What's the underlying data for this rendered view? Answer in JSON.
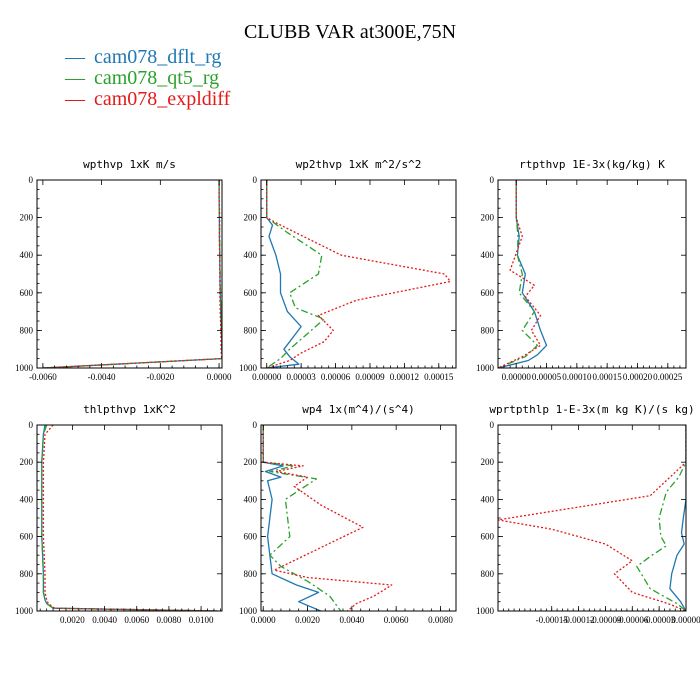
{
  "figure": {
    "title": "CLUBB VAR at300E,75N",
    "legend": [
      {
        "label": "cam078_dflt_rg",
        "color": "#1f77b4",
        "marker": "—"
      },
      {
        "label": "cam078_qt5_rg",
        "color": "#2ca02c",
        "marker": "—"
      },
      {
        "label": "cam078_expldiff",
        "color": "#e31a1c",
        "marker": "—"
      }
    ]
  },
  "chart_data": [
    {
      "type": "line",
      "title": "wpthvp  1xK m/s",
      "xlim": [
        -0.0062,
        0.0001
      ],
      "ylim": [
        0,
        1000
      ],
      "y_inverted": true,
      "xticks": [
        -0.006,
        -0.004,
        -0.002,
        0.0
      ],
      "xtick_labels": [
        "-0.0060",
        "-0.0040",
        "-0.0020",
        "0.0000"
      ],
      "yticks": [
        0,
        200,
        400,
        600,
        800,
        1000
      ],
      "ytick_labels": [
        "0",
        "200",
        "400",
        "600",
        "800",
        "1000"
      ],
      "series": [
        {
          "name": "cam078_dflt_rg",
          "x": [
            0.0,
            0.0,
            1e-05,
            1e-05,
            2e-05,
            3e-05,
            4e-05,
            6e-05,
            8e-05,
            0.0001,
            0.00012,
            -0.006
          ],
          "y": [
            0,
            100,
            200,
            300,
            400,
            500,
            600,
            700,
            800,
            900,
            950,
            1000
          ]
        },
        {
          "name": "cam078_qt5_rg",
          "x": [
            0.0,
            0.0,
            1e-05,
            2e-05,
            3e-05,
            4e-05,
            5e-05,
            6e-05,
            8e-05,
            9e-05,
            0.00011,
            -0.006
          ],
          "y": [
            0,
            100,
            200,
            300,
            400,
            500,
            600,
            700,
            800,
            900,
            950,
            1000
          ]
        },
        {
          "name": "cam078_expldiff",
          "x": [
            0.0,
            0.0,
            2e-05,
            1e-05,
            2e-05,
            3e-05,
            3e-05,
            4e-05,
            6e-05,
            7e-05,
            9e-05,
            -0.006
          ],
          "y": [
            0,
            100,
            200,
            300,
            400,
            500,
            600,
            700,
            800,
            900,
            950,
            1000
          ]
        }
      ]
    },
    {
      "type": "line",
      "title": "wp2thvp  1xK m^2/s^2",
      "xlim": [
        -5e-06,
        0.000165
      ],
      "ylim": [
        0,
        1000
      ],
      "y_inverted": true,
      "xticks": [
        0.0,
        3e-05,
        6e-05,
        9e-05,
        0.00012,
        0.00015
      ],
      "xtick_labels": [
        "0.00000",
        "0.00003",
        "0.00006",
        "0.00009",
        "0.00012",
        "0.00015"
      ],
      "yticks": [
        0,
        200,
        400,
        600,
        800,
        1000
      ],
      "ytick_labels": [
        "0",
        "200",
        "400",
        "600",
        "800",
        "1000"
      ],
      "series": [
        {
          "name": "cam078_dflt_rg",
          "x": [
            0.0,
            0.0,
            5e-06,
            2e-06,
            8e-06,
            1.2e-05,
            1.2e-05,
            1.8e-05,
            3e-05,
            2e-05,
            1.5e-05,
            2e-05,
            2.8e-05,
            0.0
          ],
          "y": [
            0,
            200,
            240,
            300,
            400,
            500,
            600,
            700,
            780,
            860,
            900,
            940,
            980,
            1000
          ]
        },
        {
          "name": "cam078_qt5_rg",
          "x": [
            0.0,
            0.0,
            1.8e-05,
            4.8e-05,
            4.5e-05,
            2e-05,
            2.5e-05,
            5e-05,
            3.5e-05,
            2e-05,
            1.2e-05,
            0.0
          ],
          "y": [
            0,
            200,
            280,
            400,
            500,
            600,
            680,
            740,
            820,
            900,
            950,
            1000
          ]
        },
        {
          "name": "cam078_expldiff",
          "x": [
            0.0,
            0.0,
            1.2e-05,
            6.5e-05,
            0.000155,
            0.00016,
            7.8e-05,
            4.5e-05,
            5.8e-05,
            5e-05,
            3e-05,
            2e-05,
            0.0
          ],
          "y": [
            0,
            200,
            240,
            400,
            500,
            540,
            640,
            720,
            800,
            860,
            920,
            960,
            1000
          ]
        }
      ]
    },
    {
      "type": "line",
      "title": "rtpthvp  1E-3x(kg/kg) K",
      "xlim": [
        -3e-05,
        0.00028
      ],
      "ylim": [
        0,
        1000
      ],
      "y_inverted": true,
      "xticks": [
        0.0,
        5e-05,
        0.0001,
        0.00015,
        0.0002,
        0.00025
      ],
      "xtick_labels": [
        "0.00000",
        "0.00005",
        "0.00010",
        "0.00015",
        "0.00020",
        "0.00025"
      ],
      "yticks": [
        0,
        200,
        400,
        600,
        800,
        1000
      ],
      "ytick_labels": [
        "0",
        "200",
        "400",
        "600",
        "800",
        "1000"
      ],
      "series": [
        {
          "name": "cam078_dflt_rg",
          "x": [
            0.0,
            0.0,
            5e-06,
            2e-06,
            1.5e-05,
            1e-05,
            3e-05,
            4e-05,
            5e-05,
            3.5e-05,
            2e-05,
            -3e-05
          ],
          "y": [
            0,
            200,
            300,
            400,
            500,
            600,
            700,
            800,
            880,
            930,
            960,
            1000
          ]
        },
        {
          "name": "cam078_qt5_rg",
          "x": [
            0.0,
            0.0,
            3e-06,
            2e-06,
            1e-05,
            5e-06,
            3e-05,
            1e-05,
            3.5e-05,
            1.5e-05,
            -3e-05
          ],
          "y": [
            0,
            200,
            300,
            400,
            500,
            600,
            700,
            800,
            880,
            940,
            1000
          ]
        },
        {
          "name": "cam078_expldiff",
          "x": [
            0.0,
            0.0,
            1e-05,
            -1e-05,
            3e-05,
            1.5e-05,
            4e-05,
            2.5e-05,
            4e-05,
            1e-05,
            -3e-05
          ],
          "y": [
            0,
            200,
            300,
            480,
            560,
            620,
            720,
            800,
            880,
            940,
            1000
          ]
        }
      ]
    },
    {
      "type": "line",
      "title": "thlpthvp  1xK^2",
      "xlim": [
        -0.0002,
        0.0113
      ],
      "ylim": [
        0,
        1000
      ],
      "y_inverted": true,
      "xticks": [
        0.002,
        0.004,
        0.006,
        0.008,
        0.01
      ],
      "xtick_labels": [
        "0.0020",
        "0.0040",
        "0.0060",
        "0.0080",
        "0.0100"
      ],
      "yticks": [
        0,
        200,
        400,
        600,
        800,
        1000
      ],
      "ytick_labels": [
        "0",
        "200",
        "400",
        "600",
        "800",
        "1000"
      ],
      "series": [
        {
          "name": "cam078_dflt_rg",
          "x": [
            0.0003,
            0.0002,
            0.0001,
            0.0001,
            0.0001,
            0.0002,
            0.0002,
            0.0003,
            0.0004,
            0.0008,
            0.011
          ],
          "y": [
            0,
            50,
            200,
            400,
            600,
            800,
            900,
            940,
            960,
            985,
            1000
          ]
        },
        {
          "name": "cam078_qt5_rg",
          "x": [
            0.0004,
            0.0002,
            0.0001,
            0.0001,
            0.0001,
            0.0002,
            0.0002,
            0.0003,
            0.0004,
            0.0008,
            0.011
          ],
          "y": [
            0,
            50,
            200,
            400,
            600,
            800,
            900,
            940,
            960,
            985,
            1000
          ]
        },
        {
          "name": "cam078_expldiff",
          "x": [
            0.0008,
            0.0003,
            0.0002,
            0.0002,
            0.0002,
            0.0003,
            0.0003,
            0.0004,
            0.0005,
            0.0009,
            0.011
          ],
          "y": [
            0,
            50,
            200,
            400,
            600,
            800,
            900,
            940,
            960,
            985,
            1000
          ]
        }
      ]
    },
    {
      "type": "line",
      "title": "wp4  1x(m^4)/(s^4)",
      "xlim": [
        -0.0001,
        0.0087
      ],
      "ylim": [
        0,
        1000
      ],
      "y_inverted": true,
      "xticks": [
        0.0,
        0.002,
        0.004,
        0.006,
        0.008
      ],
      "xtick_labels": [
        "0.0000",
        "0.0020",
        "0.0040",
        "0.0060",
        "0.0080"
      ],
      "yticks": [
        0,
        200,
        400,
        600,
        800,
        1000
      ],
      "ytick_labels": [
        "0",
        "200",
        "400",
        "600",
        "800",
        "1000"
      ],
      "series": [
        {
          "name": "cam078_dflt_rg",
          "x": [
            0.0,
            0.0,
            0.0009,
            0.0001,
            0.0008,
            0.0002,
            0.0004,
            0.0002,
            0.0004,
            0.0015,
            0.0025,
            0.0016,
            0.0026
          ],
          "y": [
            0,
            200,
            220,
            250,
            280,
            300,
            400,
            600,
            800,
            860,
            900,
            950,
            1000
          ]
        },
        {
          "name": "cam078_qt5_rg",
          "x": [
            0.0,
            0.0,
            0.0014,
            0.0003,
            0.0024,
            0.001,
            0.0012,
            0.0003,
            0.0008,
            0.002,
            0.003,
            0.0035
          ],
          "y": [
            0,
            200,
            220,
            250,
            290,
            400,
            600,
            700,
            760,
            840,
            920,
            1000
          ]
        },
        {
          "name": "cam078_expldiff",
          "x": [
            0.0,
            0.0,
            0.0018,
            0.0006,
            0.002,
            0.0014,
            0.0026,
            0.0045,
            0.0005,
            0.002,
            0.0058,
            0.005,
            0.0042,
            0.0038
          ],
          "y": [
            0,
            200,
            220,
            250,
            280,
            330,
            430,
            550,
            780,
            820,
            860,
            920,
            960,
            1000
          ]
        }
      ]
    },
    {
      "type": "line",
      "title": "wprtpthlp  1-E-3x(m kg K)/(s kg)",
      "xlim": [
        -0.00021,
        0.0
      ],
      "ylim": [
        0,
        1000
      ],
      "y_inverted": true,
      "xticks": [
        -0.00015,
        -0.00012,
        -9e-05,
        -6e-05,
        -3e-05,
        0.0
      ],
      "xtick_labels": [
        "-0.00015",
        "-0.00012",
        "-0.00009",
        "-0.00006",
        "-0.00003",
        "0.00000"
      ],
      "yticks": [
        0,
        200,
        400,
        600,
        800,
        1000
      ],
      "ytick_labels": [
        "0",
        "200",
        "400",
        "600",
        "800",
        "1000"
      ],
      "series": [
        {
          "name": "cam078_dflt_rg",
          "x": [
            0.0,
            0.0,
            0.0,
            -3e-06,
            -5e-06,
            -2e-06,
            -1e-05,
            -1.6e-05,
            -1.8e-05,
            -6e-06,
            0.0
          ],
          "y": [
            0,
            200,
            400,
            500,
            580,
            640,
            700,
            800,
            880,
            950,
            1000
          ]
        },
        {
          "name": "cam078_qt5_rg",
          "x": [
            0.0,
            0.0,
            -8e-06,
            -2.2e-05,
            -3e-05,
            -2.8e-05,
            -2.2e-05,
            -3.8e-05,
            -5.5e-05,
            -4e-05,
            -1e-05,
            0.0
          ],
          "y": [
            0,
            200,
            280,
            360,
            500,
            600,
            650,
            700,
            760,
            880,
            960,
            1000
          ]
        },
        {
          "name": "cam078_expldiff",
          "x": [
            0.0,
            0.0,
            -4e-05,
            -0.00021,
            -0.00015,
            -9e-05,
            -6e-05,
            -8e-05,
            -6e-05,
            -2e-05,
            0.0
          ],
          "y": [
            0,
            200,
            380,
            510,
            560,
            640,
            730,
            800,
            900,
            960,
            1000
          ]
        }
      ]
    }
  ]
}
